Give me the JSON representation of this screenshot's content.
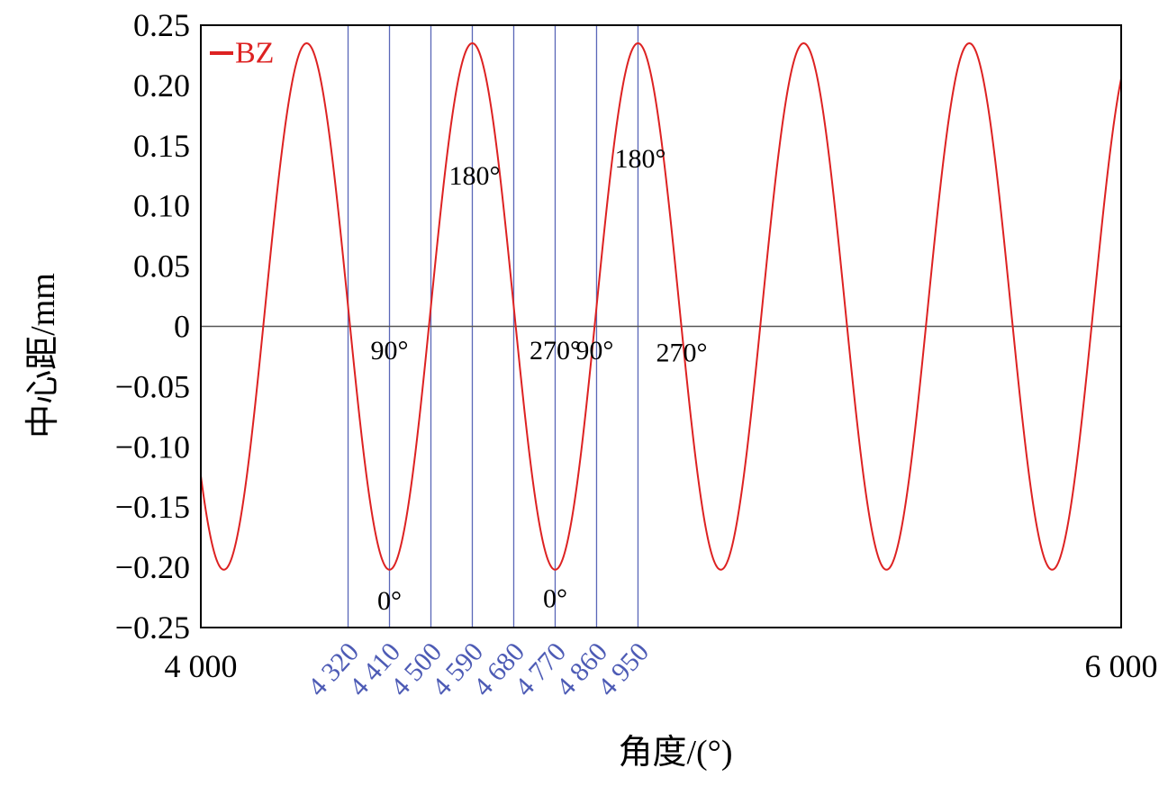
{
  "chart_data": {
    "type": "line",
    "title": "",
    "xlabel": "角度/(°)",
    "ylabel": "中心距/mm",
    "xlim": [
      4000,
      6000
    ],
    "ylim": [
      -0.25,
      0.25
    ],
    "x_ticks": [
      {
        "value": 4000,
        "label": "4 000"
      },
      {
        "value": 6000,
        "label": "6 000"
      }
    ],
    "y_ticks": [
      {
        "value": 0.25,
        "label": "0.25"
      },
      {
        "value": 0.2,
        "label": "0.20"
      },
      {
        "value": 0.15,
        "label": "0.15"
      },
      {
        "value": 0.1,
        "label": "0.10"
      },
      {
        "value": 0.05,
        "label": "0.05"
      },
      {
        "value": 0,
        "label": "0"
      },
      {
        "value": -0.05,
        "label": "−0.05"
      },
      {
        "value": -0.1,
        "label": "−0.10"
      },
      {
        "value": -0.15,
        "label": "−0.15"
      },
      {
        "value": -0.2,
        "label": "−0.20"
      },
      {
        "value": -0.25,
        "label": "−0.25"
      }
    ],
    "reference_lines": [
      {
        "value": 4320,
        "label": "4 320"
      },
      {
        "value": 4410,
        "label": "4 410"
      },
      {
        "value": 4500,
        "label": "4 500"
      },
      {
        "value": 4590,
        "label": "4 590"
      },
      {
        "value": 4680,
        "label": "4 680"
      },
      {
        "value": 4770,
        "label": "4 770"
      },
      {
        "value": 4860,
        "label": "4 860"
      },
      {
        "value": 4950,
        "label": "4 950"
      }
    ],
    "annotations": [
      {
        "text": "0°",
        "x": 4410,
        "y": -0.228
      },
      {
        "text": "90°",
        "x": 4410,
        "y": -0.02
      },
      {
        "text": "180°",
        "x": 4595,
        "y": 0.125
      },
      {
        "text": "270°",
        "x": 4770,
        "y": -0.02
      },
      {
        "text": "0°",
        "x": 4770,
        "y": -0.226
      },
      {
        "text": "90°",
        "x": 4856,
        "y": -0.02
      },
      {
        "text": "180°",
        "x": 4955,
        "y": 0.139
      },
      {
        "text": "270°",
        "x": 5045,
        "y": -0.022
      }
    ],
    "series": [
      {
        "name": "BZ",
        "color": "#dd2222",
        "mean": 0.0165,
        "amplitude": 0.2185,
        "period": 360,
        "peak_x": 4230
      }
    ],
    "legend": "top-left",
    "grid": false,
    "zero_line": true,
    "colors": {
      "line": "#dd2222",
      "reference": "#5a67b8",
      "reference_label": "#4d5bb5",
      "axis": "#000000",
      "zero": "#555555"
    }
  }
}
